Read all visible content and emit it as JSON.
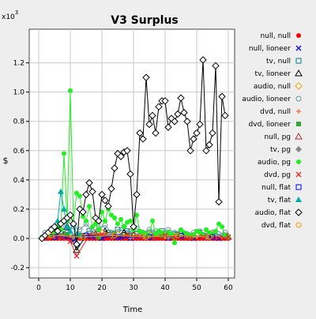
{
  "chart_data": {
    "type": "line",
    "title": "V3 Surplus",
    "xlabel": "Time",
    "ylabel": "$",
    "y_multiplier_label": "x10",
    "y_multiplier_exponent": "3",
    "xlim": [
      -3,
      62
    ],
    "ylim": [
      -0.27,
      1.43
    ],
    "x_ticks": [
      0,
      10,
      20,
      30,
      40,
      50,
      60
    ],
    "y_ticks": [
      -0.2,
      0.0,
      0.2,
      0.4,
      0.6,
      0.8,
      1.0,
      1.2
    ],
    "y_tick_labels": [
      "-0.2",
      "0.0",
      "0.2",
      "0.4",
      "0.6",
      "0.8",
      "1.0",
      "1.2"
    ],
    "grid": true,
    "legend_position": "right",
    "series": [
      {
        "name": "null, null",
        "color": "#ff0000",
        "marker": "dot",
        "x": [
          1,
          2,
          3,
          4,
          5,
          6,
          7,
          8,
          9,
          10,
          11,
          12,
          13,
          14,
          15,
          16,
          17,
          18,
          19,
          20,
          21,
          22,
          23,
          24,
          25,
          26,
          27,
          28,
          29,
          30,
          31,
          32,
          33,
          34,
          35,
          36,
          37,
          38,
          39,
          40,
          41,
          42,
          43,
          44,
          45,
          46,
          47,
          48,
          49,
          50,
          51,
          52,
          53,
          54,
          55,
          56,
          57,
          58,
          59,
          60
        ],
        "y": [
          0,
          0,
          0,
          0,
          0,
          0,
          0,
          0,
          0,
          0,
          0,
          0,
          0,
          0,
          0,
          0,
          0,
          0,
          0,
          0,
          0,
          0,
          0,
          0,
          0,
          0,
          0,
          0,
          0,
          0,
          0,
          0,
          0,
          0,
          0,
          0,
          0,
          0,
          0,
          0,
          0,
          0,
          0,
          0,
          0,
          0,
          0,
          0,
          0,
          0,
          0,
          0,
          0,
          0,
          0,
          0,
          0,
          0,
          0,
          0
        ]
      },
      {
        "name": "null, lioneer",
        "color": "#0000ff",
        "marker": "x",
        "x": [
          2,
          5,
          8,
          11,
          14,
          17,
          20,
          23,
          26,
          29,
          33,
          37,
          41,
          45,
          49,
          53,
          57
        ],
        "y": [
          0.01,
          0.02,
          0.01,
          -0.01,
          0.02,
          0.01,
          0.0,
          0.02,
          0.01,
          0.0,
          0.01,
          0.02,
          0.0,
          0.01,
          0.0,
          0.01,
          0.0
        ]
      },
      {
        "name": "tv, null",
        "color": "#008080",
        "marker": "square",
        "x": [
          3,
          6,
          9,
          13,
          16,
          19,
          22,
          25,
          28,
          31,
          35,
          39,
          43,
          47,
          51,
          55,
          59
        ],
        "y": [
          0.03,
          0.06,
          0.04,
          0.02,
          0.05,
          0.03,
          0.04,
          0.06,
          0.05,
          0.03,
          0.04,
          0.05,
          0.03,
          0.02,
          0.04,
          0.03,
          0.02
        ]
      },
      {
        "name": "tv, lioneer",
        "color": "#000000",
        "marker": "triangle",
        "x": [
          4,
          7,
          9,
          12,
          15,
          18,
          21,
          24,
          27,
          30
        ],
        "y": [
          0.03,
          0.05,
          0.08,
          -0.08,
          0.02,
          0.03,
          0.05,
          0.02,
          0.04,
          0.03
        ]
      },
      {
        "name": "audio, null",
        "color": "#ff9900",
        "marker": "diamond",
        "x": [
          5,
          10,
          15,
          20,
          25,
          30,
          35,
          40,
          45,
          50,
          55
        ],
        "y": [
          0.02,
          0.03,
          0.02,
          0.04,
          0.03,
          0.02,
          0.03,
          0.02,
          0.03,
          0.02,
          0.03
        ]
      },
      {
        "name": "audio, lioneer",
        "color": "#669999",
        "marker": "circle",
        "x": [
          2,
          4,
          6,
          7,
          9,
          11,
          13,
          15,
          17,
          19,
          21,
          23,
          25,
          27,
          29,
          31,
          33,
          35,
          37,
          39,
          41,
          43,
          45,
          47,
          49,
          51,
          53,
          55,
          57,
          59
        ],
        "y": [
          0.04,
          0.07,
          0.1,
          0.05,
          0.12,
          0.08,
          0.06,
          0.1,
          0.05,
          0.07,
          0.09,
          0.04,
          0.06,
          0.08,
          0.05,
          0.07,
          0.04,
          0.06,
          0.05,
          0.03,
          0.06,
          0.04,
          0.05,
          0.03,
          0.04,
          0.05,
          0.03,
          0.04,
          0.03,
          0.04
        ]
      },
      {
        "name": "dvd, null",
        "color": "#ff6633",
        "marker": "plus",
        "x": [
          3,
          8,
          13,
          18,
          23,
          28,
          33,
          38,
          43,
          48,
          53,
          58
        ],
        "y": [
          0.01,
          0.02,
          0.01,
          0.02,
          0.01,
          0.02,
          0.01,
          0.02,
          0.01,
          0.01,
          0.02,
          0.01
        ]
      },
      {
        "name": "dvd, lioneer",
        "color": "#33aa33",
        "marker": "filled-square",
        "x": [
          4,
          9,
          14,
          19,
          24,
          29,
          34,
          39,
          44,
          49,
          54,
          59
        ],
        "y": [
          0.02,
          0.03,
          0.02,
          0.01,
          0.03,
          0.02,
          0.01,
          0.02,
          0.03,
          0.02,
          0.01,
          0.02
        ]
      },
      {
        "name": "null, pg",
        "color": "#aa3333",
        "marker": "triangle",
        "x": [
          6,
          12,
          18,
          24,
          30,
          36,
          42,
          48,
          54,
          60
        ],
        "y": [
          0.01,
          0.02,
          0.03,
          0.01,
          0.02,
          0.01,
          0.02,
          0.01,
          0.02,
          0.01
        ]
      },
      {
        "name": "tv, pg",
        "color": "#888888",
        "marker": "filled-diamond",
        "x": [
          5,
          11,
          17,
          23,
          29,
          35,
          41,
          47,
          53,
          59
        ],
        "y": [
          0.02,
          0.01,
          0.03,
          0.02,
          0.01,
          0.02,
          0.01,
          0.02,
          0.01,
          0.02
        ]
      },
      {
        "name": "audio, pg",
        "color": "#22ee22",
        "marker": "dot",
        "x": [
          1,
          2,
          3,
          4,
          5,
          6,
          7,
          8,
          9,
          10,
          11,
          12,
          13,
          14,
          15,
          16,
          17,
          18,
          19,
          20,
          21,
          22,
          23,
          24,
          25,
          26,
          27,
          28,
          29,
          30,
          31,
          32,
          33,
          34,
          35,
          36,
          37,
          38,
          39,
          40,
          41,
          42,
          43,
          44,
          45,
          46,
          47,
          48,
          49,
          50,
          51,
          52,
          53,
          54,
          55,
          56,
          57,
          58,
          59,
          60
        ],
        "y": [
          0.01,
          0.02,
          0.03,
          0.05,
          0.04,
          0.08,
          0.06,
          0.58,
          0.12,
          1.01,
          0.1,
          0.31,
          0.29,
          0.15,
          0.12,
          0.22,
          0.08,
          0.1,
          0.06,
          0.18,
          0.12,
          0.2,
          0.16,
          0.14,
          0.1,
          0.13,
          0.08,
          0.11,
          0.12,
          0.06,
          0.16,
          0.05,
          0.04,
          0.03,
          0.02,
          0.12,
          0.03,
          0.05,
          0.04,
          0.02,
          0.04,
          0.03,
          -0.03,
          0.02,
          0.06,
          0.04,
          0.03,
          0.02,
          0.02,
          0.05,
          0.04,
          0.02,
          0.06,
          0.04,
          0.03,
          0.05,
          0.1,
          0.08,
          0.02,
          0.01
        ]
      },
      {
        "name": "dvd, pg",
        "color": "#ee2222",
        "marker": "x",
        "x": [
          2,
          6,
          10,
          12,
          16,
          20,
          24,
          28,
          32,
          36,
          40,
          44,
          48,
          52,
          56,
          60
        ],
        "y": [
          0.0,
          0.01,
          -0.02,
          -0.12,
          0.02,
          0.03,
          0.01,
          0.02,
          0.01,
          0.0,
          0.02,
          0.01,
          0.0,
          0.01,
          0.0,
          0.01
        ]
      },
      {
        "name": "null, flat",
        "color": "#0000ff",
        "marker": "square",
        "x": [
          5,
          15,
          25,
          35,
          45,
          55
        ],
        "y": [
          0.01,
          0.02,
          0.01,
          0.01,
          0.02,
          0.01
        ]
      },
      {
        "name": "tv, flat",
        "color": "#00aaaa",
        "marker": "filled-triangle",
        "x": [
          6,
          7,
          8,
          9,
          10,
          11,
          12,
          13
        ],
        "y": [
          0.12,
          0.32,
          0.2,
          0.08,
          0.05,
          0.1,
          0.03,
          0.02
        ]
      },
      {
        "name": "audio, flat",
        "color": "#000000",
        "marker": "diamond",
        "x": [
          1,
          2,
          3,
          4,
          5,
          6,
          7,
          8,
          9,
          10,
          11,
          12,
          13,
          14,
          15,
          16,
          17,
          18,
          19,
          20,
          21,
          22,
          23,
          24,
          25,
          26,
          27,
          28,
          29,
          30,
          31,
          32,
          33,
          34,
          35,
          36,
          37,
          38,
          39,
          40,
          41,
          42,
          43,
          44,
          45,
          46,
          47,
          48,
          49,
          50,
          51,
          52,
          53,
          54,
          55,
          56,
          57,
          58,
          59
        ],
        "y": [
          0.0,
          0.02,
          0.04,
          0.06,
          0.08,
          0.05,
          0.1,
          0.12,
          0.14,
          0.16,
          0.1,
          -0.04,
          0.2,
          0.18,
          0.3,
          0.38,
          0.32,
          0.14,
          0.12,
          0.3,
          0.26,
          0.22,
          0.34,
          0.48,
          0.58,
          0.56,
          0.59,
          0.6,
          0.44,
          0.08,
          0.3,
          0.72,
          0.68,
          1.1,
          0.78,
          0.84,
          0.72,
          0.9,
          0.94,
          0.94,
          0.76,
          0.82,
          0.8,
          0.85,
          0.96,
          0.86,
          0.8,
          0.6,
          0.68,
          0.72,
          0.78,
          1.22,
          0.6,
          0.64,
          0.72,
          1.18,
          0.25,
          0.97,
          0.84
        ]
      },
      {
        "name": "dvd, flat",
        "color": "#ff9900",
        "marker": "circle",
        "x": [
          4,
          14,
          24,
          34,
          44,
          54
        ],
        "y": [
          0.02,
          0.01,
          0.02,
          0.01,
          0.02,
          0.01
        ]
      }
    ]
  }
}
